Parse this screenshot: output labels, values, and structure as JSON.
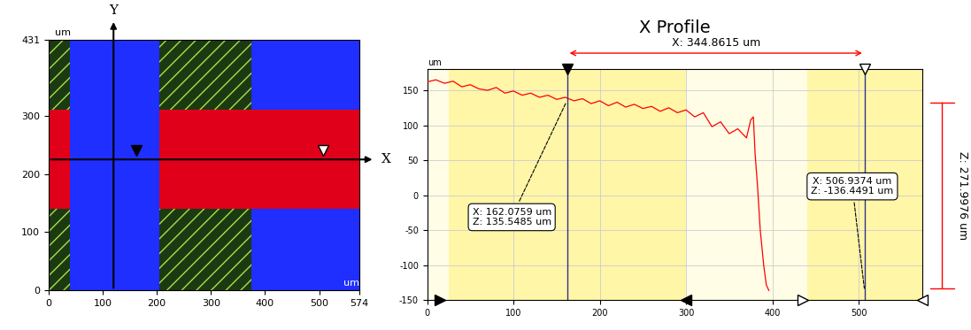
{
  "chart_data": [
    {
      "type": "map",
      "xlim": [
        0,
        574
      ],
      "ylim": [
        0,
        431
      ],
      "xticks": [
        0,
        100,
        200,
        300,
        400,
        500,
        574
      ],
      "yticks": [
        0,
        100,
        200,
        300,
        431
      ],
      "x_unit": "um",
      "y_unit": "um",
      "background": "#1c3a12",
      "regions": [
        {
          "x": [
            40,
            205
          ],
          "y": [
            0,
            431
          ],
          "color": "#1f2fff"
        },
        {
          "x": [
            375,
            574
          ],
          "y": [
            0,
            431
          ],
          "color": "#1f2fff"
        },
        {
          "x": [
            0,
            40
          ],
          "y": [
            140,
            310
          ],
          "color": "#e0001a"
        },
        {
          "x": [
            205,
            574
          ],
          "y": [
            140,
            310
          ],
          "color": "#e0001a"
        }
      ],
      "crosshair": {
        "x": 120,
        "y": 225,
        "labels": [
          "Y",
          "X"
        ]
      },
      "cursors": [
        162.0759,
        506.9374
      ]
    },
    {
      "type": "line",
      "title": "X Profile",
      "y_label": "um",
      "xlim": [
        0,
        574
      ],
      "ylim": [
        -150,
        180
      ],
      "xticks": [
        0,
        100,
        200,
        300,
        400,
        500
      ],
      "yticks": [
        -150,
        -100,
        -50,
        0,
        50,
        100,
        150
      ],
      "grid": true,
      "color": "#ff0000",
      "background": "#fffde6",
      "bands": [
        {
          "x": [
            25,
            300
          ],
          "color": "#fff6a8"
        },
        {
          "x": [
            440,
            574
          ],
          "color": "#fff6a8"
        }
      ],
      "bounds": [
        [
          15,
          300
        ],
        [
          435,
          574
        ]
      ],
      "x": [
        0,
        10,
        20,
        30,
        40,
        50,
        60,
        70,
        80,
        90,
        100,
        110,
        120,
        130,
        140,
        150,
        160,
        170,
        180,
        190,
        200,
        210,
        220,
        230,
        240,
        250,
        260,
        270,
        280,
        290,
        300,
        310,
        320,
        330,
        340,
        350,
        360,
        370,
        375,
        378,
        380,
        383,
        386,
        390,
        393,
        396
      ],
      "values": [
        162,
        165,
        160,
        163,
        155,
        158,
        152,
        150,
        154,
        146,
        149,
        143,
        146,
        140,
        143,
        137,
        140,
        135,
        138,
        131,
        135,
        128,
        133,
        126,
        130,
        124,
        127,
        120,
        125,
        118,
        122,
        112,
        118,
        98,
        105,
        88,
        95,
        82,
        108,
        112,
        60,
        10,
        -50,
        -100,
        -128,
        -136
      ],
      "cursors": [
        {
          "x": 162.0759,
          "z": 135.5485,
          "label": "X: 162.0759 um\nZ: 135.5485 um"
        },
        {
          "x": 506.9374,
          "z": -136.4491,
          "label": "X: 506.9374 um\nZ: -136.4491 um"
        }
      ],
      "x_span": {
        "label": "X: 344.8615 um"
      },
      "z_span": {
        "label": "Z: 271.9976 um"
      }
    }
  ]
}
